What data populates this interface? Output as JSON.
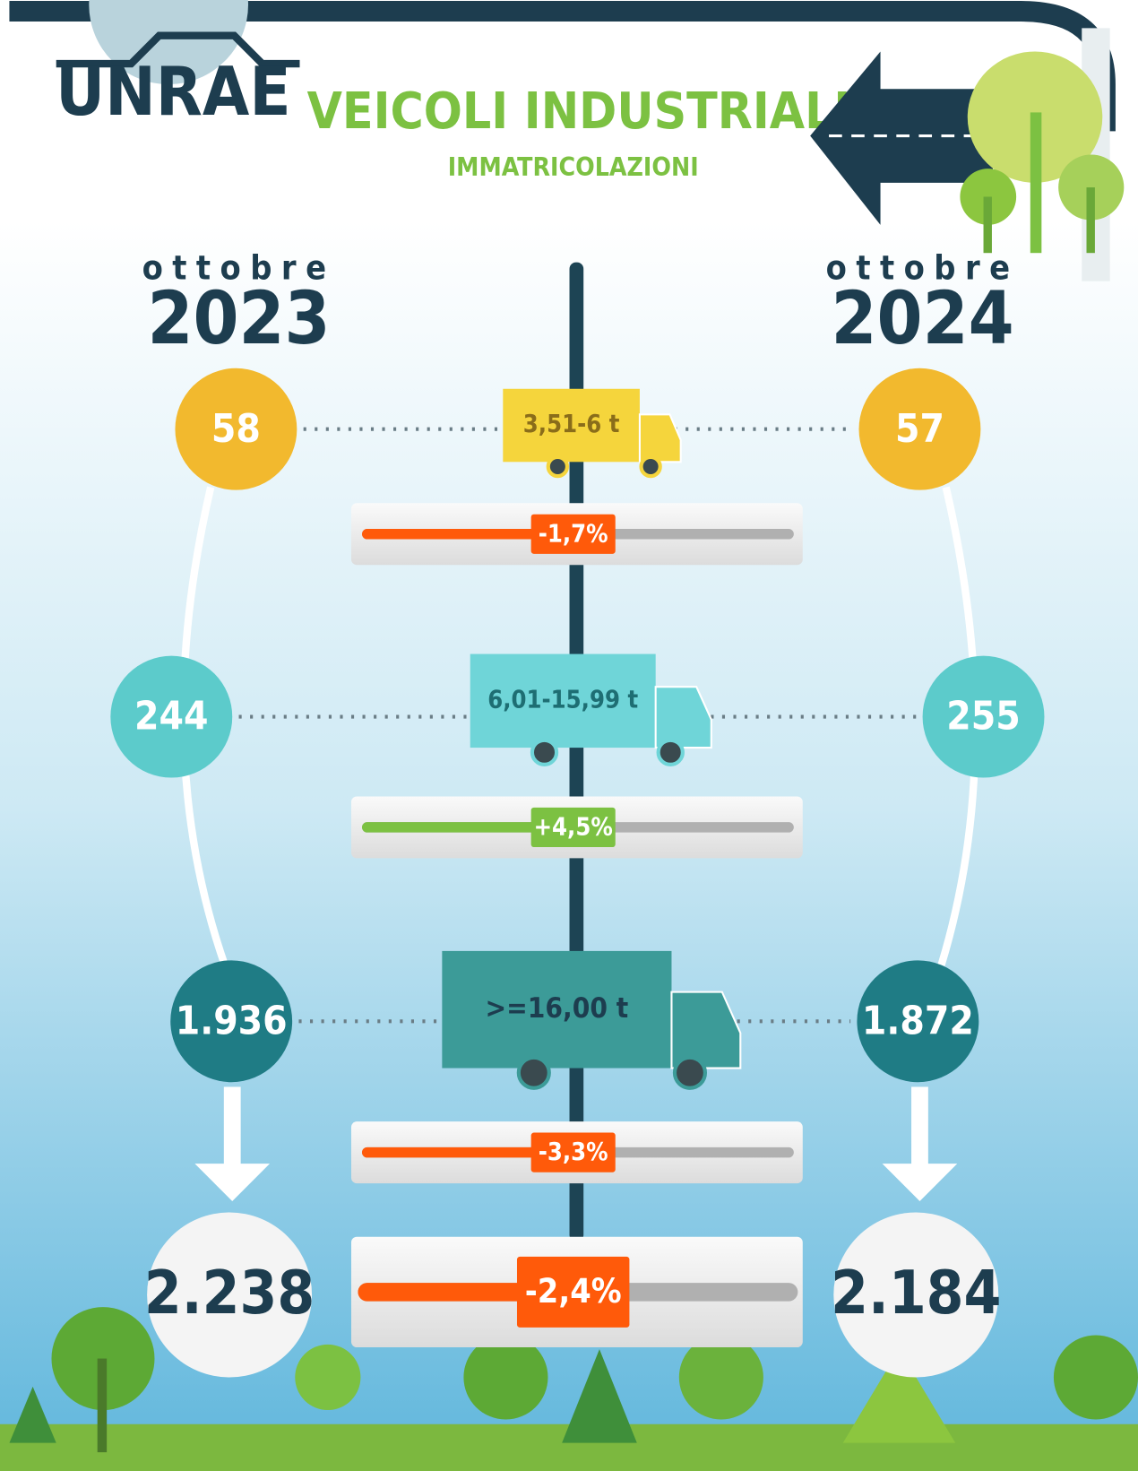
{
  "logo": "UNRAE",
  "header": {
    "title": "VEICOLI INDUSTRIALI",
    "subtitle": "IMMATRICOLAZIONI"
  },
  "periods": [
    {
      "month": "ottobre",
      "year": "2023"
    },
    {
      "month": "ottobre",
      "year": "2024"
    }
  ],
  "rows": [
    {
      "label": "3,51-6 t",
      "values": [
        "58",
        "57"
      ],
      "change": "-1,7%"
    },
    {
      "label": "6,01-15,99 t",
      "values": [
        "244",
        "255"
      ],
      "change": "+4,5%"
    },
    {
      "label": ">=16,00 t",
      "values": [
        "1.936",
        "1.872"
      ],
      "change": "-3,3%"
    }
  ],
  "total": {
    "values": [
      "2.238",
      "2.184"
    ],
    "change": "-2,4%"
  }
}
